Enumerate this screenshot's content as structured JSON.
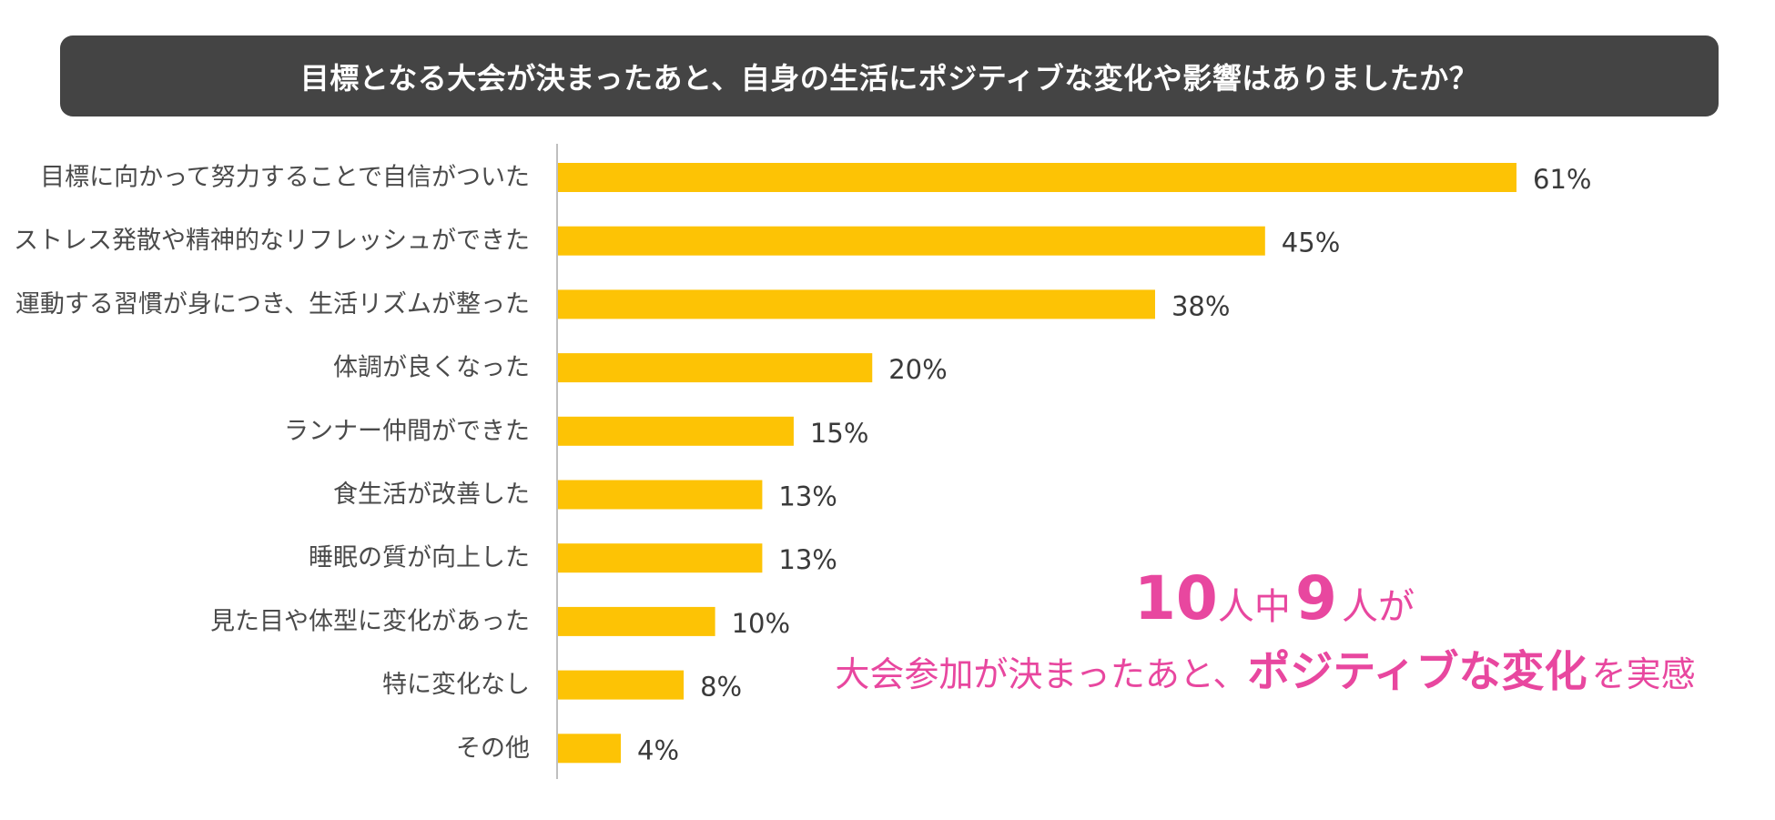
{
  "title": "目標となる大会が決まったあと、自身の生活にポジティブな変化や影響はありましたか？",
  "colors": {
    "bar": "#FDC305",
    "title_bg": "#444444",
    "title_text": "#FFFFFF",
    "axis": "#BFBFBF",
    "callout": "#E8479F"
  },
  "chart_data": {
    "type": "bar",
    "orientation": "horizontal",
    "title": "目標となる大会が決まったあと、自身の生活にポジティブな変化や影響はありましたか？",
    "categories": [
      "目標に向かって努力することで自信がついた",
      "ストレス発散や精神的なリフレッシュができた",
      "運動する習慣が身につき、生活リズムが整った",
      "体調が良くなった",
      "ランナー仲間ができた",
      "食生活が改善した",
      "睡眠の質が向上した",
      "見た目や体型に変化があった",
      "特に変化なし",
      "その他"
    ],
    "values": [
      61,
      45,
      38,
      20,
      15,
      13,
      13,
      10,
      8,
      4
    ],
    "value_labels": [
      "61%",
      "45%",
      "38%",
      "20%",
      "15%",
      "13%",
      "13%",
      "10%",
      "8%",
      "4%"
    ],
    "unit": "%",
    "xlim": [
      0,
      61
    ],
    "grid": false,
    "legend": false
  },
  "callout": {
    "line1_num1": "10",
    "line1_text1": "人中",
    "line1_num2": "9",
    "line1_text2": "人が",
    "line2_prefix": "大会参加が決まったあと、",
    "line2_bold": "ポジティブな変化",
    "line2_suffix": "を実感"
  }
}
